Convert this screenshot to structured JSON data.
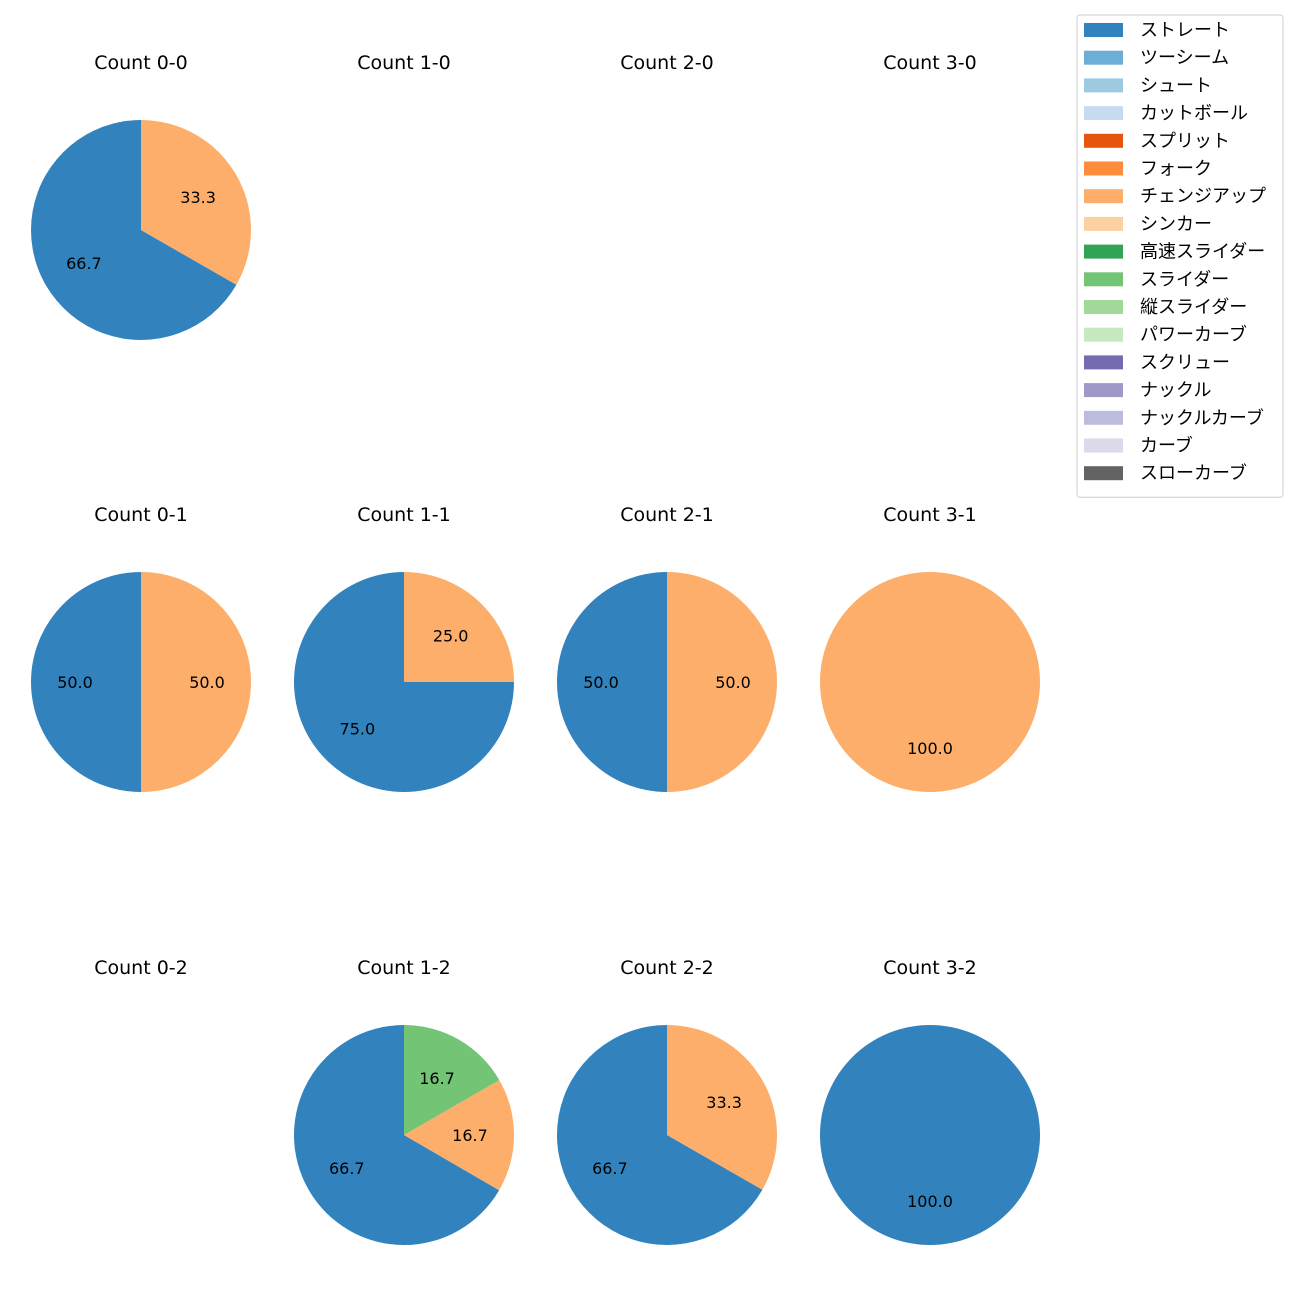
{
  "chart_data": {
    "type": "pie",
    "legend": {
      "placement": "top-right",
      "entries": [
        {
          "label": "ストレート",
          "color": "#3182bd"
        },
        {
          "label": "ツーシーム",
          "color": "#6baed6"
        },
        {
          "label": "シュート",
          "color": "#9ecae1"
        },
        {
          "label": "カットボール",
          "color": "#c6dbef"
        },
        {
          "label": "スプリット",
          "color": "#e6550d"
        },
        {
          "label": "フォーク",
          "color": "#fd8d3c"
        },
        {
          "label": "チェンジアップ",
          "color": "#fdae6b"
        },
        {
          "label": "シンカー",
          "color": "#fdd0a2"
        },
        {
          "label": "高速スライダー",
          "color": "#31a354"
        },
        {
          "label": "スライダー",
          "color": "#74c476"
        },
        {
          "label": "縦スライダー",
          "color": "#a1d99b"
        },
        {
          "label": "パワーカーブ",
          "color": "#c7e9c0"
        },
        {
          "label": "スクリュー",
          "color": "#756bb1"
        },
        {
          "label": "ナックル",
          "color": "#9e9ac8"
        },
        {
          "label": "ナックルカーブ",
          "color": "#bcbddc"
        },
        {
          "label": "カーブ",
          "color": "#dadaeb"
        },
        {
          "label": "スローカーブ",
          "color": "#636363"
        }
      ]
    },
    "panels": [
      {
        "title": "Count 0-0",
        "slices": [
          {
            "pitch": "ストレート",
            "value": 66.7,
            "label": "66.7"
          },
          {
            "pitch": "チェンジアップ",
            "value": 33.3,
            "label": "33.3"
          }
        ]
      },
      {
        "title": "Count 1-0",
        "slices": []
      },
      {
        "title": "Count 2-0",
        "slices": []
      },
      {
        "title": "Count 3-0",
        "slices": []
      },
      {
        "title": "Count 0-1",
        "slices": [
          {
            "pitch": "ストレート",
            "value": 50.0,
            "label": "50.0"
          },
          {
            "pitch": "チェンジアップ",
            "value": 50.0,
            "label": "50.0"
          }
        ]
      },
      {
        "title": "Count 1-1",
        "slices": [
          {
            "pitch": "ストレート",
            "value": 75.0,
            "label": "75.0"
          },
          {
            "pitch": "チェンジアップ",
            "value": 25.0,
            "label": "25.0"
          }
        ]
      },
      {
        "title": "Count 2-1",
        "slices": [
          {
            "pitch": "ストレート",
            "value": 50.0,
            "label": "50.0"
          },
          {
            "pitch": "チェンジアップ",
            "value": 50.0,
            "label": "50.0"
          }
        ]
      },
      {
        "title": "Count 3-1",
        "slices": [
          {
            "pitch": "チェンジアップ",
            "value": 100.0,
            "label": "100.0"
          }
        ]
      },
      {
        "title": "Count 0-2",
        "slices": []
      },
      {
        "title": "Count 1-2",
        "slices": [
          {
            "pitch": "ストレート",
            "value": 66.7,
            "label": "66.7"
          },
          {
            "pitch": "チェンジアップ",
            "value": 16.7,
            "label": "16.7"
          },
          {
            "pitch": "スライダー",
            "value": 16.7,
            "label": "16.7"
          }
        ]
      },
      {
        "title": "Count 2-2",
        "slices": [
          {
            "pitch": "ストレート",
            "value": 66.7,
            "label": "66.7"
          },
          {
            "pitch": "チェンジアップ",
            "value": 33.3,
            "label": "33.3"
          }
        ]
      },
      {
        "title": "Count 3-2",
        "slices": [
          {
            "pitch": "ストレート",
            "value": 100.0,
            "label": "100.0"
          }
        ]
      }
    ]
  }
}
